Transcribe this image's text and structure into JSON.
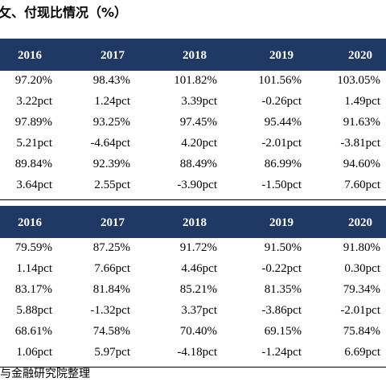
{
  "title": "攵、付现比情况（%）",
  "tables": [
    {
      "header": [
        "2016",
        "2017",
        "2018",
        "2019",
        "2020"
      ],
      "rows": [
        [
          "97.20%",
          "98.43%",
          "101.82%",
          "101.56%",
          "103.05%"
        ],
        [
          "3.22pct",
          "1.24pct",
          "3.39pct",
          "-0.26pct",
          "1.49pct"
        ],
        [
          "97.89%",
          "93.25%",
          "97.45%",
          "95.44%",
          "91.63%"
        ],
        [
          "5.21pct",
          "-4.64pct",
          "4.20pct",
          "-2.01pct",
          "-3.81pct"
        ],
        [
          "89.84%",
          "92.39%",
          "88.49%",
          "86.99%",
          "94.60%"
        ],
        [
          "3.64pct",
          "2.55pct",
          "-3.90pct",
          "-1.50pct",
          "7.60pct"
        ]
      ]
    },
    {
      "header": [
        "2016",
        "2017",
        "2018",
        "2019",
        "2020"
      ],
      "rows": [
        [
          "79.59%",
          "87.25%",
          "91.72%",
          "91.50%",
          "91.80%"
        ],
        [
          "1.14pct",
          "7.66pct",
          "4.46pct",
          "-0.22pct",
          "0.30pct"
        ],
        [
          "83.17%",
          "81.84%",
          "85.21%",
          "81.35%",
          "79.34%"
        ],
        [
          "5.88pct",
          "-1.32pct",
          "3.37pct",
          "-3.86pct",
          "-2.01pct"
        ],
        [
          "68.61%",
          "74.58%",
          "70.40%",
          "69.15%",
          "75.84%"
        ],
        [
          "1.06pct",
          "5.97pct",
          "-4.18pct",
          "-1.24pct",
          "6.69pct"
        ]
      ]
    }
  ],
  "footer": "与金融研究院整理"
}
